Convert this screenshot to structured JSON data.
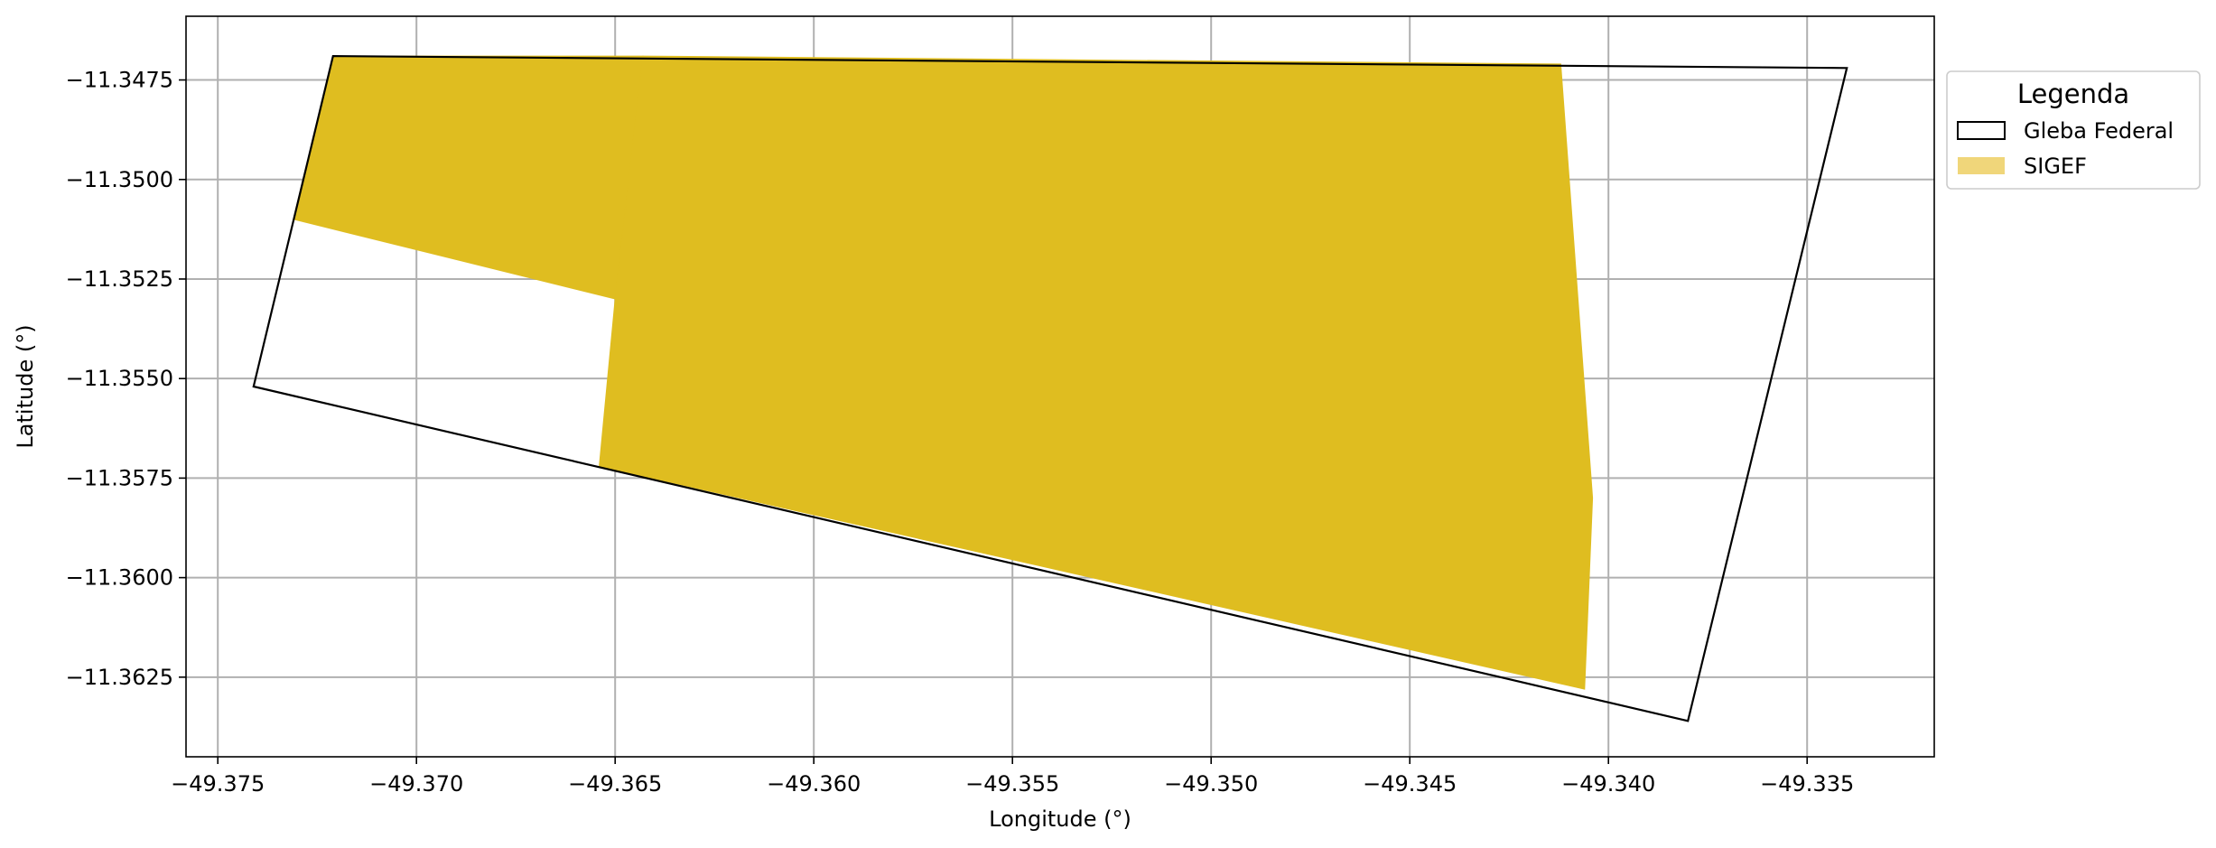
{
  "chart_data": {
    "type": "map",
    "xlabel": "Longitude (°)",
    "ylabel": "Latitude (°)",
    "xlim": [
      -49.3758,
      -49.3318
    ],
    "ylim": [
      -11.3645,
      -11.3459
    ],
    "grid": true,
    "x_ticks": [
      -49.375,
      -49.37,
      -49.365,
      -49.36,
      -49.355,
      -49.35,
      -49.345,
      -49.34,
      -49.335
    ],
    "x_tick_labels": [
      "−49.375",
      "−49.370",
      "−49.365",
      "−49.360",
      "−49.355",
      "−49.350",
      "−49.345",
      "−49.340",
      "−49.335"
    ],
    "y_ticks": [
      -11.3475,
      -11.35,
      -11.3525,
      -11.355,
      -11.3575,
      -11.36,
      -11.3625
    ],
    "y_tick_labels": [
      "−11.3475",
      "−11.3500",
      "−11.3525",
      "−11.3550",
      "−11.3575",
      "−11.3600",
      "−11.3625"
    ],
    "legend": {
      "title": "Legenda",
      "placement": "outside-right-top",
      "entries": [
        {
          "label": "Gleba Federal",
          "style": "outline",
          "color": "#000000"
        },
        {
          "label": "SIGEF",
          "style": "fill",
          "color": "#f0d67a"
        }
      ]
    },
    "series": [
      {
        "name": "SIGEF",
        "color": "#dfbd20",
        "polygons": [
          [
            [
              -49.3721,
              -11.3469
            ],
            [
              -49.3643,
              -11.3469
            ],
            [
              -49.365,
              -11.353
            ],
            [
              -49.3731,
              -11.351
            ]
          ],
          [
            [
              -49.3643,
              -11.3469
            ],
            [
              -49.3412,
              -11.3471
            ],
            [
              -49.3404,
              -11.358
            ],
            [
              -49.3406,
              -11.3628
            ],
            [
              -49.3654,
              -11.3572
            ],
            [
              -49.365,
              -11.353
            ]
          ]
        ]
      },
      {
        "name": "Gleba Federal",
        "color": "#000000",
        "polygons": [
          [
            [
              -49.3721,
              -11.3469
            ],
            [
              -49.334,
              -11.3472
            ],
            [
              -49.338,
              -11.3636
            ],
            [
              -49.3741,
              -11.3552
            ]
          ]
        ]
      }
    ]
  }
}
